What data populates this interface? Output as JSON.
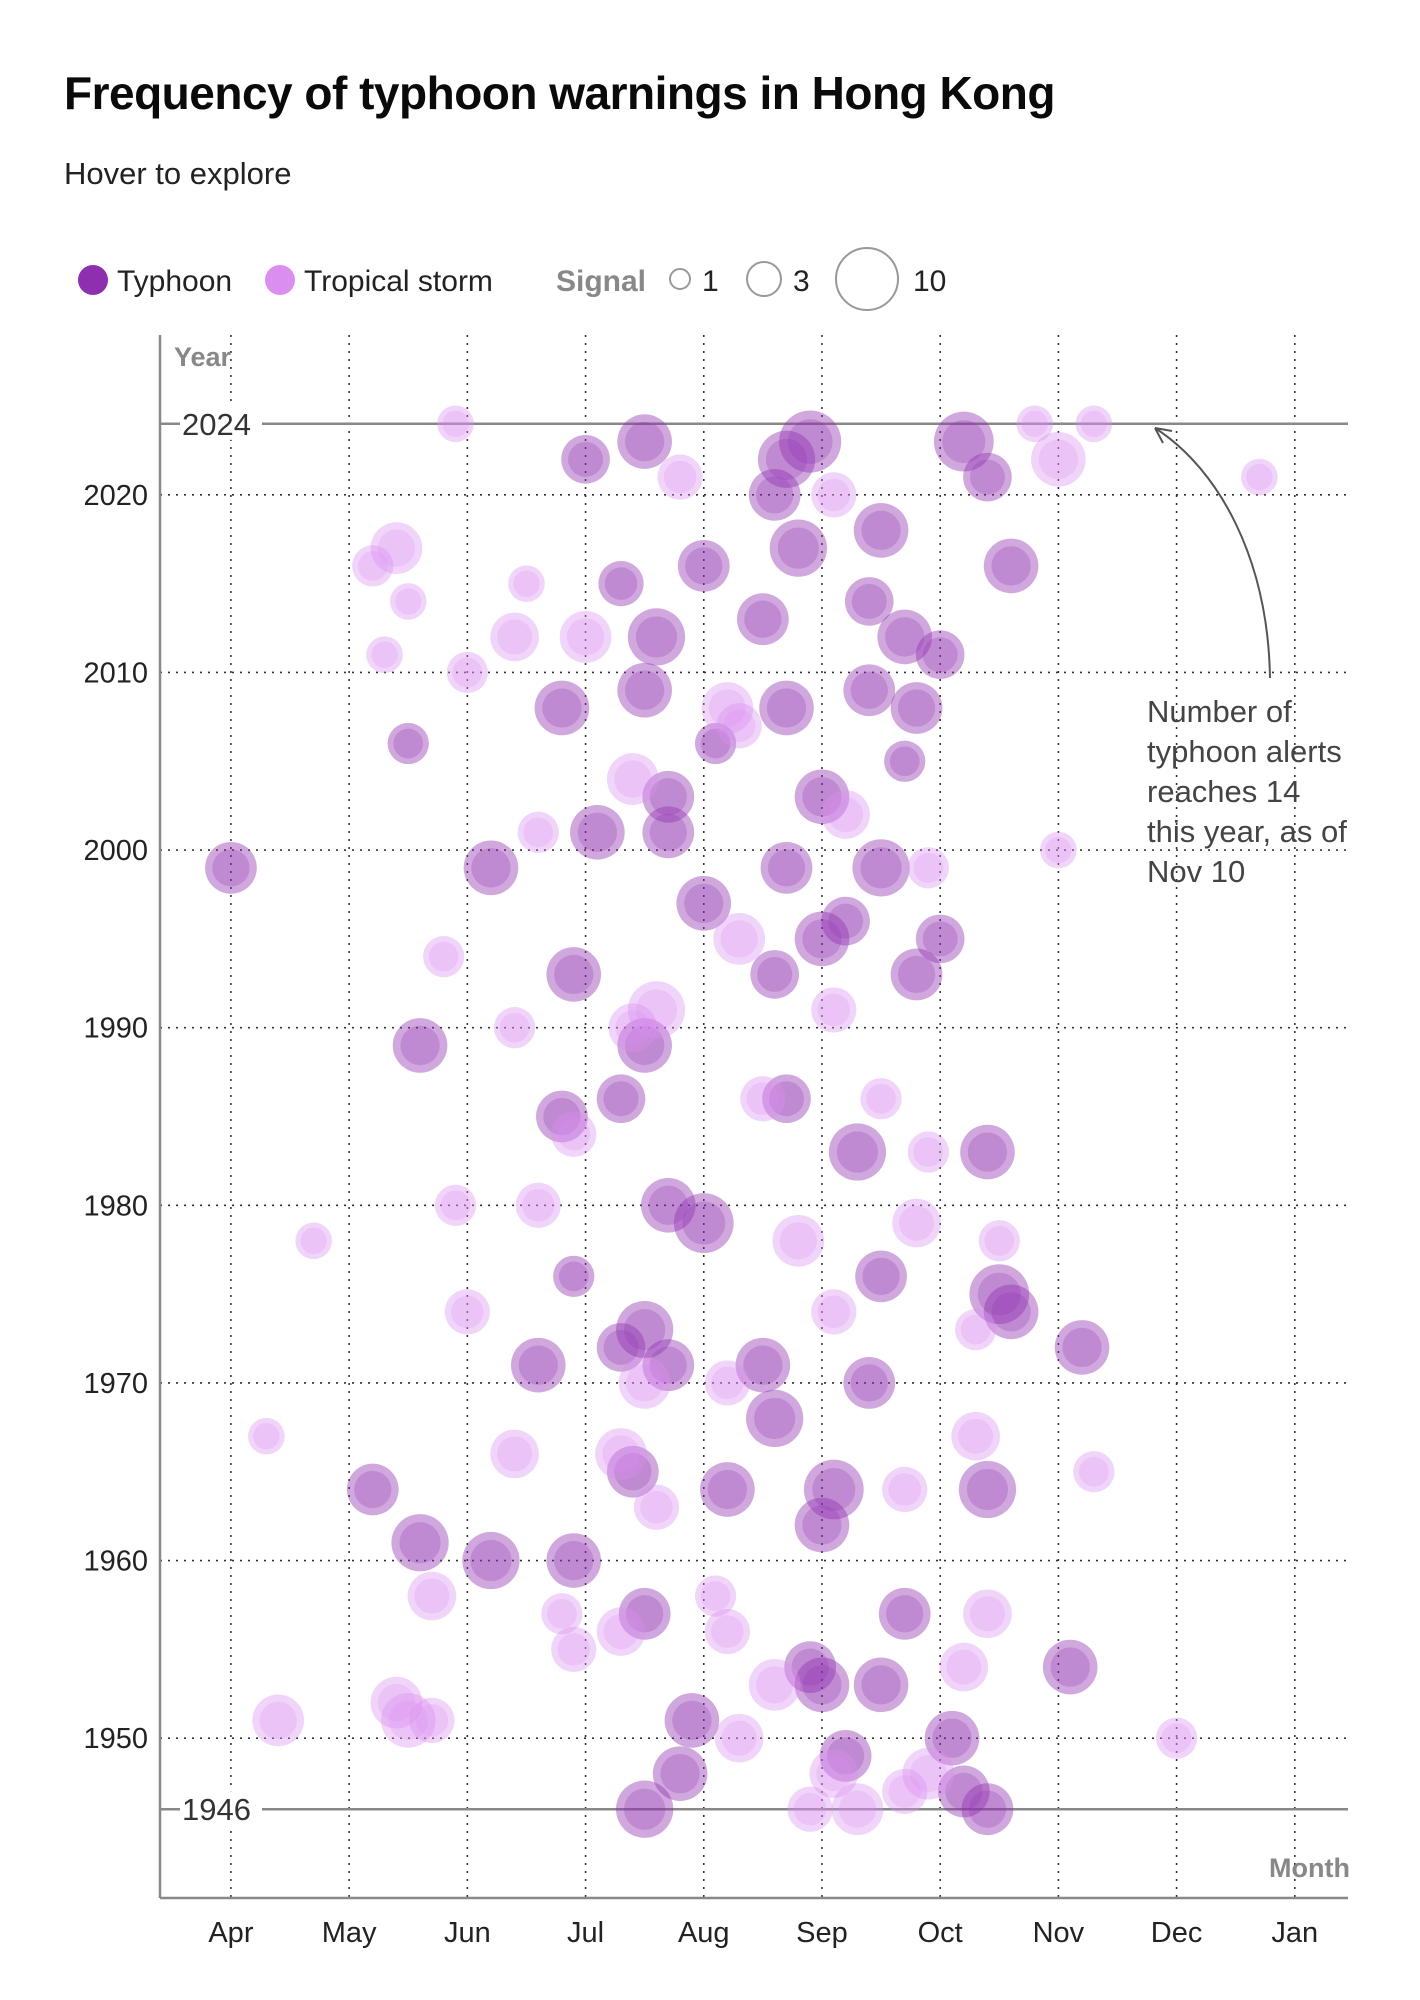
{
  "title": "Frequency of typhoon warnings in Hong Kong",
  "subtitle": "Hover to explore",
  "legend": {
    "typhoon": "Typhoon",
    "tropical_storm": "Tropical storm",
    "signal_label": "Signal",
    "sizes": [
      "1",
      "3",
      "10"
    ]
  },
  "colors": {
    "typhoon": "#8e2fb0",
    "tropical_storm": "#d98ef0"
  },
  "annotation": "Number of typhoon alerts reaches 14 this year, as of Nov 10",
  "chart_data": {
    "type": "scatter",
    "title": "Frequency of typhoon warnings in Hong Kong",
    "xlabel": "Month",
    "ylabel": "Year",
    "x_ticks": [
      "Apr",
      "May",
      "Jun",
      "Jul",
      "Aug",
      "Sep",
      "Oct",
      "Nov",
      "Dec",
      "Jan"
    ],
    "y_ticks": [
      1950,
      1960,
      1970,
      1980,
      1990,
      2000,
      2010,
      2020
    ],
    "x_range": [
      3.4,
      13.45
    ],
    "y_range": [
      1941,
      2029
    ],
    "reference_lines": [
      2024,
      1946
    ],
    "grid": true,
    "legend_position": "top-left",
    "size_legend": [
      1,
      3,
      10
    ],
    "series": [
      {
        "name": "Typhoon",
        "points": [
          [
            7.5,
            2023,
            7
          ],
          [
            8.9,
            2023,
            10
          ],
          [
            10.2,
            2023,
            9
          ],
          [
            8.7,
            2022,
            8
          ],
          [
            7.0,
            2022,
            5
          ],
          [
            8.6,
            2020,
            6
          ],
          [
            10.4,
            2021,
            5
          ],
          [
            8.8,
            2017,
            8
          ],
          [
            9.5,
            2018,
            7
          ],
          [
            8.0,
            2016,
            6
          ],
          [
            10.6,
            2016,
            7
          ],
          [
            7.3,
            2015,
            4
          ],
          [
            8.5,
            2013,
            6
          ],
          [
            9.4,
            2014,
            5
          ],
          [
            9.7,
            2012,
            7
          ],
          [
            7.6,
            2012,
            8
          ],
          [
            10.0,
            2011,
            5
          ],
          [
            7.5,
            2009,
            7
          ],
          [
            6.8,
            2008,
            7
          ],
          [
            8.7,
            2008,
            7
          ],
          [
            9.8,
            2008,
            6
          ],
          [
            9.4,
            2009,
            6
          ],
          [
            5.5,
            2006,
            3
          ],
          [
            8.1,
            2006,
            3
          ],
          [
            9.7,
            2005,
            3
          ],
          [
            7.7,
            2003,
            6
          ],
          [
            9.0,
            2003,
            7
          ],
          [
            7.1,
            2001,
            7
          ],
          [
            7.7,
            2001,
            6
          ],
          [
            4.0,
            1999,
            6
          ],
          [
            6.2,
            1999,
            7
          ],
          [
            8.7,
            1999,
            6
          ],
          [
            9.5,
            1999,
            8
          ],
          [
            8.0,
            1997,
            7
          ],
          [
            9.0,
            1995,
            7
          ],
          [
            9.2,
            1996,
            5
          ],
          [
            10.0,
            1995,
            5
          ],
          [
            6.9,
            1993,
            7
          ],
          [
            8.6,
            1993,
            5
          ],
          [
            9.8,
            1993,
            6
          ],
          [
            7.5,
            1989,
            7
          ],
          [
            5.6,
            1989,
            7
          ],
          [
            8.7,
            1986,
            5
          ],
          [
            7.3,
            1986,
            5
          ],
          [
            6.8,
            1985,
            6
          ],
          [
            9.3,
            1983,
            8
          ],
          [
            10.4,
            1983,
            7
          ],
          [
            7.7,
            1980,
            7
          ],
          [
            8.0,
            1979,
            9
          ],
          [
            6.9,
            1976,
            3
          ],
          [
            9.5,
            1976,
            6
          ],
          [
            10.5,
            1975,
            9
          ],
          [
            10.6,
            1974,
            7
          ],
          [
            7.5,
            1973,
            8
          ],
          [
            7.3,
            1972,
            5
          ],
          [
            6.6,
            1971,
            7
          ],
          [
            7.7,
            1971,
            6
          ],
          [
            8.5,
            1971,
            7
          ],
          [
            9.4,
            1970,
            6
          ],
          [
            11.2,
            1972,
            7
          ],
          [
            8.6,
            1968,
            8
          ],
          [
            7.4,
            1965,
            6
          ],
          [
            8.2,
            1964,
            7
          ],
          [
            9.1,
            1964,
            9
          ],
          [
            10.4,
            1964,
            8
          ],
          [
            9.0,
            1962,
            7
          ],
          [
            5.2,
            1964,
            6
          ],
          [
            5.6,
            1961,
            8
          ],
          [
            6.2,
            1960,
            8
          ],
          [
            6.9,
            1960,
            7
          ],
          [
            7.5,
            1957,
            6
          ],
          [
            9.7,
            1957,
            6
          ],
          [
            8.9,
            1954,
            6
          ],
          [
            11.1,
            1954,
            7
          ],
          [
            9.0,
            1953,
            7
          ],
          [
            9.5,
            1953,
            7
          ],
          [
            7.9,
            1951,
            7
          ],
          [
            10.1,
            1950,
            7
          ],
          [
            9.2,
            1949,
            6
          ],
          [
            7.8,
            1948,
            7
          ],
          [
            7.5,
            1946,
            8
          ],
          [
            10.4,
            1946,
            6
          ],
          [
            10.2,
            1947,
            6
          ]
        ]
      },
      {
        "name": "Tropical storm",
        "points": [
          [
            5.9,
            2024,
            2
          ],
          [
            11.3,
            2024,
            2
          ],
          [
            10.8,
            2024,
            2
          ],
          [
            11.0,
            2022,
            7
          ],
          [
            12.7,
            2021,
            2
          ],
          [
            7.8,
            2021,
            4
          ],
          [
            9.1,
            2020,
            4
          ],
          [
            5.4,
            2017,
            6
          ],
          [
            5.2,
            2016,
            3
          ],
          [
            6.5,
            2015,
            2
          ],
          [
            5.5,
            2014,
            2
          ],
          [
            6.4,
            2012,
            5
          ],
          [
            7.0,
            2012,
            6
          ],
          [
            5.3,
            2011,
            2
          ],
          [
            8.2,
            2008,
            6
          ],
          [
            8.3,
            2007,
            4
          ],
          [
            7.4,
            2004,
            6
          ],
          [
            9.2,
            2002,
            5
          ],
          [
            6.6,
            2001,
            3
          ],
          [
            11.0,
            2000,
            2
          ],
          [
            9.9,
            1999,
            3
          ],
          [
            8.3,
            1995,
            6
          ],
          [
            5.8,
            1994,
            3
          ],
          [
            7.6,
            1991,
            8
          ],
          [
            7.4,
            1990,
            5
          ],
          [
            6.4,
            1990,
            3
          ],
          [
            9.1,
            1991,
            4
          ],
          [
            8.5,
            1986,
            4
          ],
          [
            9.5,
            1986,
            3
          ],
          [
            6.9,
            1984,
            4
          ],
          [
            9.9,
            1983,
            3
          ],
          [
            5.9,
            1980,
            3
          ],
          [
            6.6,
            1980,
            4
          ],
          [
            8.8,
            1978,
            6
          ],
          [
            9.8,
            1979,
            5
          ],
          [
            10.5,
            1978,
            3
          ],
          [
            9.1,
            1974,
            4
          ],
          [
            10.3,
            1973,
            3
          ],
          [
            6.0,
            1974,
            4
          ],
          [
            7.5,
            1970,
            6
          ],
          [
            8.2,
            1970,
            4
          ],
          [
            10.3,
            1967,
            5
          ],
          [
            11.3,
            1965,
            3
          ],
          [
            7.3,
            1966,
            6
          ],
          [
            6.4,
            1966,
            5
          ],
          [
            7.6,
            1963,
            4
          ],
          [
            9.7,
            1964,
            4
          ],
          [
            10.4,
            1957,
            5
          ],
          [
            6.8,
            1957,
            3
          ],
          [
            7.3,
            1956,
            5
          ],
          [
            8.2,
            1956,
            4
          ],
          [
            8.6,
            1953,
            6
          ],
          [
            10.2,
            1954,
            5
          ],
          [
            5.4,
            1952,
            6
          ],
          [
            5.5,
            1951,
            7
          ],
          [
            4.4,
            1951,
            6
          ],
          [
            5.7,
            1951,
            4
          ],
          [
            6.9,
            1955,
            4
          ],
          [
            8.1,
            1958,
            3
          ],
          [
            5.7,
            1958,
            5
          ],
          [
            12.0,
            1950,
            3
          ],
          [
            8.3,
            1950,
            5
          ],
          [
            9.1,
            1948,
            5
          ],
          [
            9.7,
            1947,
            4
          ],
          [
            9.9,
            1948,
            6
          ],
          [
            8.9,
            1946,
            4
          ],
          [
            9.3,
            1946,
            6
          ],
          [
            4.3,
            1967,
            2
          ],
          [
            4.7,
            1978,
            2
          ],
          [
            6.0,
            2010,
            3
          ]
        ]
      }
    ]
  }
}
